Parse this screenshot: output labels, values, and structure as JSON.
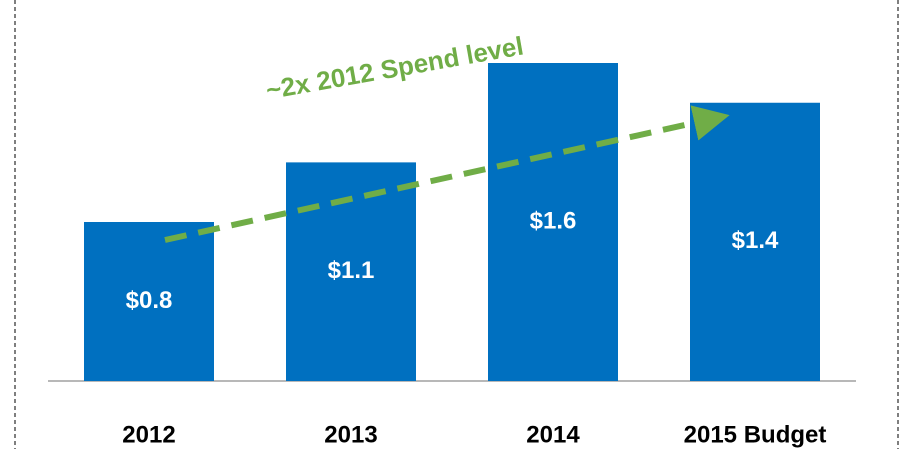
{
  "chart_data": {
    "type": "bar",
    "annotation": "~2x 2012 Spend level",
    "categories": [
      "2012",
      "2013",
      "2014",
      "2015 Budget"
    ],
    "values": [
      0.8,
      1.1,
      1.6,
      1.4
    ],
    "value_labels": [
      "$0.8",
      "$1.1",
      "$1.6",
      "$1.4"
    ],
    "color": "#0070c0"
  }
}
